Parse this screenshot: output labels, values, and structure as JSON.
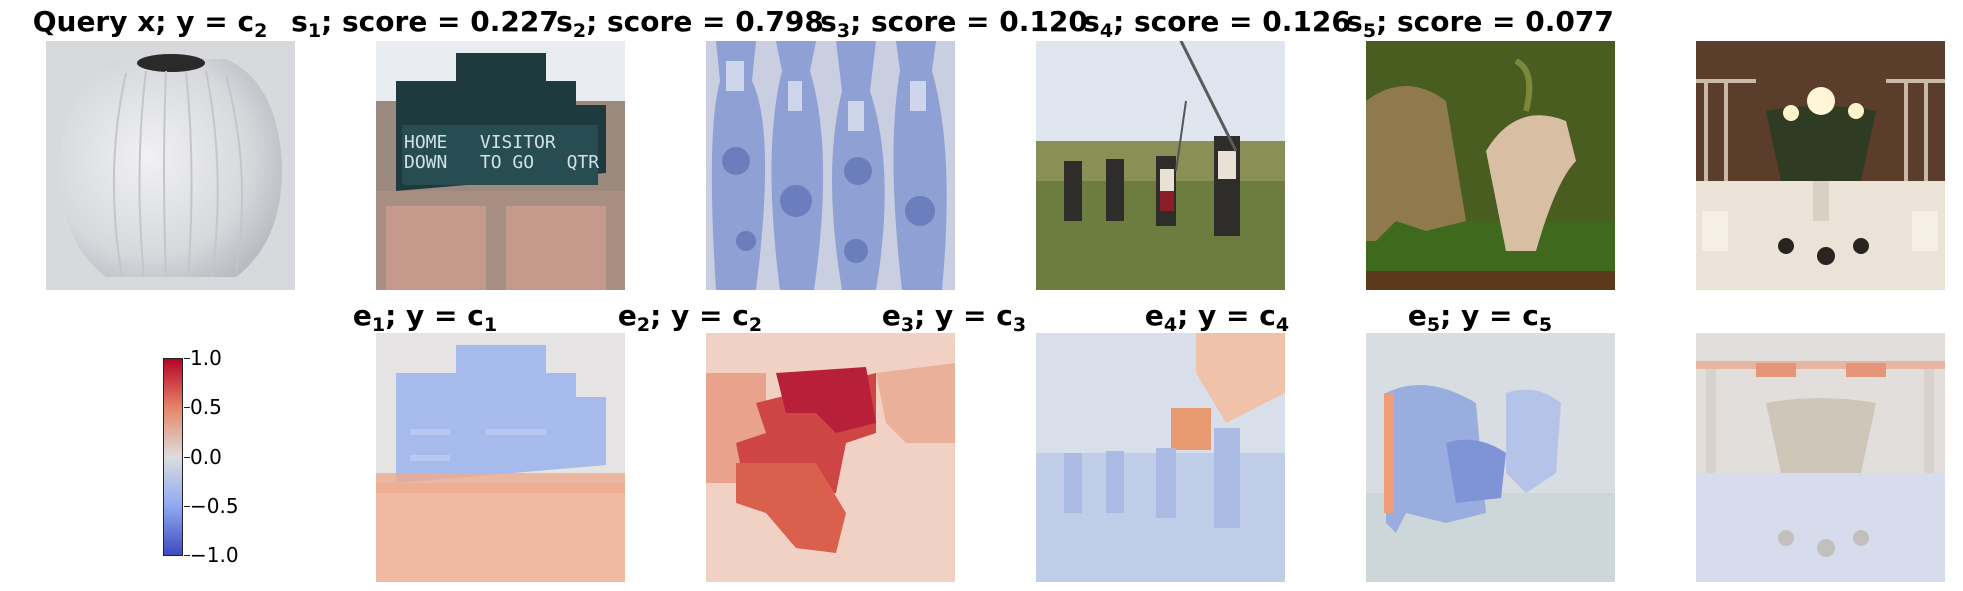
{
  "top_row": [
    {
      "prefix": "Query x; y = c",
      "sub": "2",
      "suffix": "",
      "img": "vase"
    },
    {
      "prefix": "s",
      "sub": "1",
      "suffix": "; score = 0.227",
      "img": "scoreboard"
    },
    {
      "prefix": "s",
      "sub": "2",
      "suffix": "; score = 0.798",
      "img": "vases"
    },
    {
      "prefix": "s",
      "sub": "3",
      "suffix": "; score = 0.120",
      "img": "people"
    },
    {
      "prefix": "s",
      "sub": "4",
      "suffix": "; score = 0.126",
      "img": "lioness"
    },
    {
      "prefix": "s",
      "sub": "5",
      "suffix": "; score = 0.077",
      "img": "candles"
    }
  ],
  "bottom_row": [
    {
      "prefix": "e",
      "sub": "1",
      "mid": "; y = c",
      "sub2": "1",
      "img": "scoreboard"
    },
    {
      "prefix": "e",
      "sub": "2",
      "mid": "; y = c",
      "sub2": "2",
      "img": "vases"
    },
    {
      "prefix": "e",
      "sub": "3",
      "mid": "; y = c",
      "sub2": "3",
      "img": "people"
    },
    {
      "prefix": "e",
      "sub": "4",
      "mid": "; y = c",
      "sub2": "4",
      "img": "lioness"
    },
    {
      "prefix": "e",
      "sub": "5",
      "mid": "; y = c",
      "sub2": "5",
      "img": "candles"
    }
  ],
  "scoreboard_text": {
    "home": "HOME",
    "visitor": "VISITOR",
    "down": "DOWN",
    "togo": "TO GO",
    "qtr": "QTR"
  },
  "colorbar": {
    "ticks": [
      "1.0",
      "0.5",
      "0.0",
      "−0.5",
      "−1.0"
    ],
    "colors": {
      "high": "#b40426",
      "mid": "#dddddd",
      "low": "#3b4cc0"
    }
  }
}
